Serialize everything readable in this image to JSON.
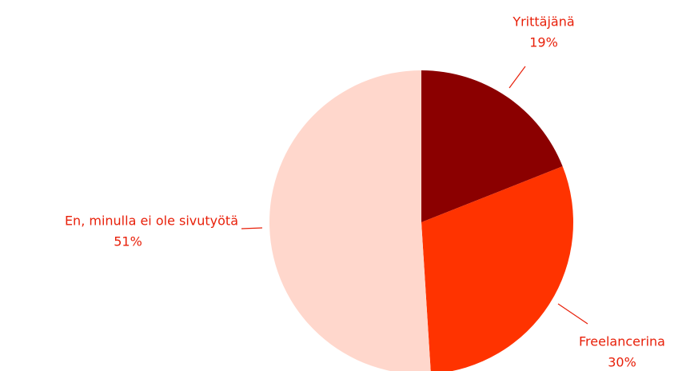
{
  "chart_data": {
    "type": "pie",
    "categories": [
      "Yrittäjänä",
      "Freelancerina",
      "En, minulla ei ole sivutyötä"
    ],
    "values": [
      19,
      30,
      51
    ],
    "value_labels": [
      "19%",
      "30%",
      "51%"
    ],
    "colors": [
      "#8b0000",
      "#ff3300",
      "#ffd7cc"
    ]
  }
}
